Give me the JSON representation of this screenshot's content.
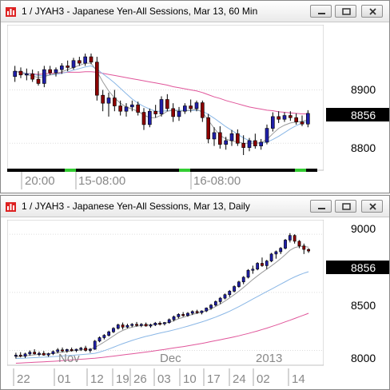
{
  "colors": {
    "pink": "#e0559a",
    "blue": "#8ab7e6",
    "grey": "#9a9a9a",
    "up": "#1f1fa8",
    "down": "#8b0000",
    "last": "#000000"
  },
  "window1": {
    "title": "1 / JYAH3 - Japanese Yen-All Sessions, Mar 13, 60 Min",
    "price_labels": [
      "8900",
      "8800"
    ],
    "last_price": "8856",
    "time_labels": [
      "20:00",
      "15-08:00",
      "16-08:00"
    ]
  },
  "window2": {
    "title": "1 / JYAH3 - Japanese Yen-All Sessions, Mar 13, Daily",
    "price_labels": [
      "9000",
      "8500",
      "8000"
    ],
    "last_price": "8856",
    "month_labels": [
      "Nov",
      "Dec",
      "2013"
    ],
    "date_labels": [
      "22",
      "01",
      "12",
      "19",
      "26",
      "03",
      "10",
      "17",
      "24",
      "02",
      "14"
    ]
  },
  "chart_data": [
    {
      "type": "candlestick",
      "title": "1 / JYAH3 - Japanese Yen-All Sessions, Mar 13, 60 Min",
      "ylim": [
        8760,
        9010
      ],
      "y_ticks": [
        8800,
        8900
      ],
      "last": 8856,
      "candles": [
        [
          8925,
          8945,
          8915,
          8935
        ],
        [
          8935,
          8942,
          8922,
          8928
        ],
        [
          8928,
          8940,
          8918,
          8930
        ],
        [
          8930,
          8938,
          8915,
          8920
        ],
        [
          8920,
          8935,
          8908,
          8912
        ],
        [
          8912,
          8945,
          8905,
          8938
        ],
        [
          8938,
          8945,
          8928,
          8932
        ],
        [
          8932,
          8942,
          8925,
          8938
        ],
        [
          8938,
          8950,
          8930,
          8945
        ],
        [
          8945,
          8955,
          8935,
          8942
        ],
        [
          8942,
          8960,
          8938,
          8955
        ],
        [
          8955,
          8962,
          8945,
          8950
        ],
        [
          8950,
          8968,
          8945,
          8962
        ],
        [
          8962,
          8968,
          8948,
          8952
        ],
        [
          8952,
          8962,
          8880,
          8890
        ],
        [
          8890,
          8900,
          8860,
          8875
        ],
        [
          8875,
          8895,
          8850,
          8885
        ],
        [
          8885,
          8900,
          8860,
          8870
        ],
        [
          8870,
          8880,
          8852,
          8860
        ],
        [
          8860,
          8875,
          8850,
          8868
        ],
        [
          8868,
          8880,
          8860,
          8872
        ],
        [
          8872,
          8878,
          8852,
          8858
        ],
        [
          8858,
          8866,
          8825,
          8835
        ],
        [
          8835,
          8865,
          8830,
          8860
        ],
        [
          8860,
          8872,
          8848,
          8855
        ],
        [
          8855,
          8888,
          8850,
          8882
        ],
        [
          8882,
          8892,
          8860,
          8865
        ],
        [
          8865,
          8875,
          8840,
          8850
        ],
        [
          8850,
          8868,
          8842,
          8860
        ],
        [
          8860,
          8875,
          8855,
          8870
        ],
        [
          8870,
          8882,
          8858,
          8865
        ],
        [
          8865,
          8880,
          8860,
          8876
        ],
        [
          8876,
          8880,
          8840,
          8848
        ],
        [
          8848,
          8855,
          8800,
          8808
        ],
        [
          8808,
          8830,
          8795,
          8820
        ],
        [
          8820,
          8832,
          8790,
          8798
        ],
        [
          8798,
          8812,
          8788,
          8805
        ],
        [
          8805,
          8825,
          8795,
          8818
        ],
        [
          8818,
          8826,
          8795,
          8800
        ],
        [
          8800,
          8815,
          8778,
          8792
        ],
        [
          8792,
          8810,
          8785,
          8805
        ],
        [
          8805,
          8818,
          8790,
          8795
        ],
        [
          8795,
          8808,
          8788,
          8802
        ],
        [
          8802,
          8835,
          8798,
          8828
        ],
        [
          8828,
          8858,
          8822,
          8850
        ],
        [
          8850,
          8860,
          8838,
          8845
        ],
        [
          8845,
          8858,
          8840,
          8852
        ],
        [
          8852,
          8860,
          8842,
          8848
        ],
        [
          8848,
          8856,
          8835,
          8840
        ],
        [
          8840,
          8852,
          8832,
          8836
        ],
        [
          8836,
          8862,
          8830,
          8856
        ]
      ],
      "ma_long": [
        8935,
        8933,
        8931,
        8930,
        8929,
        8930,
        8931,
        8931,
        8932,
        8933,
        8933,
        8933,
        8934,
        8934,
        8933,
        8931,
        8929,
        8927,
        8925,
        8923,
        8921,
        8919,
        8917,
        8915,
        8913,
        8911,
        8909,
        8906,
        8904,
        8902,
        8900,
        8898,
        8895,
        8891,
        8887,
        8884,
        8880,
        8877,
        8874,
        8871,
        8868,
        8866,
        8864,
        8862,
        8861,
        8859,
        8858,
        8857,
        8856,
        8855,
        8855
      ],
      "ma_mid": [
        8935,
        8933,
        8931,
        8929,
        8927,
        8927,
        8928,
        8929,
        8931,
        8934,
        8937,
        8940,
        8943,
        8945,
        8939,
        8930,
        8922,
        8913,
        8903,
        8893,
        8883,
        8875,
        8869,
        8864,
        8860,
        8860,
        8861,
        8862,
        8862,
        8861,
        8861,
        8862,
        8860,
        8854,
        8847,
        8839,
        8831,
        8824,
        8817,
        8810,
        8805,
        8801,
        8800,
        8802,
        8807,
        8813,
        8820,
        8827,
        8833,
        8838,
        8841
      ],
      "ma_short": [
        8935,
        8932,
        8929,
        8926,
        8923,
        8925,
        8928,
        8931,
        8934,
        8938,
        8942,
        8946,
        8950,
        8950,
        8935,
        8915,
        8898,
        8885,
        8875,
        8868,
        8864,
        8860,
        8853,
        8848,
        8848,
        8853,
        8860,
        8862,
        8860,
        8861,
        8862,
        8864,
        8858,
        8843,
        8828,
        8815,
        8808,
        8804,
        8803,
        8800,
        8800,
        8800,
        8801,
        8807,
        8818,
        8828,
        8834,
        8838,
        8840,
        8841,
        8844
      ]
    },
    {
      "type": "candlestick",
      "title": "1 / JYAH3 - Japanese Yen-All Sessions, Mar 13, Daily",
      "ylim": [
        7900,
        9070
      ],
      "y_ticks": [
        8000,
        8500,
        9000
      ],
      "last": 8856,
      "candles": [
        [
          7950,
          7980,
          7930,
          7960
        ],
        [
          7960,
          7985,
          7940,
          7950
        ],
        [
          7950,
          7980,
          7935,
          7970
        ],
        [
          7970,
          8000,
          7955,
          7985
        ],
        [
          7985,
          8010,
          7965,
          7970
        ],
        [
          7970,
          7990,
          7950,
          7975
        ],
        [
          7975,
          7995,
          7955,
          7960
        ],
        [
          7960,
          7980,
          7945,
          7972
        ],
        [
          7972,
          8000,
          7960,
          7990
        ],
        [
          7990,
          8020,
          7975,
          8005
        ],
        [
          8005,
          8025,
          7985,
          7995
        ],
        [
          7995,
          8015,
          7980,
          8008
        ],
        [
          8008,
          8025,
          7990,
          8000
        ],
        [
          8000,
          8015,
          7985,
          8010
        ],
        [
          8010,
          8030,
          7995,
          8020
        ],
        [
          8020,
          8040,
          7990,
          8000
        ],
        [
          8000,
          8020,
          7980,
          8010
        ],
        [
          8010,
          8090,
          8005,
          8080
        ],
        [
          8080,
          8120,
          8070,
          8110
        ],
        [
          8110,
          8140,
          8095,
          8130
        ],
        [
          8130,
          8170,
          8120,
          8160
        ],
        [
          8160,
          8200,
          8150,
          8190
        ],
        [
          8190,
          8230,
          8180,
          8220
        ],
        [
          8220,
          8240,
          8180,
          8200
        ],
        [
          8200,
          8230,
          8190,
          8215
        ],
        [
          8215,
          8235,
          8200,
          8225
        ],
        [
          8225,
          8245,
          8205,
          8215
        ],
        [
          8215,
          8235,
          8200,
          8225
        ],
        [
          8225,
          8240,
          8205,
          8210
        ],
        [
          8210,
          8230,
          8195,
          8220
        ],
        [
          8220,
          8245,
          8210,
          8235
        ],
        [
          8235,
          8250,
          8215,
          8230
        ],
        [
          8230,
          8245,
          8215,
          8240
        ],
        [
          8240,
          8275,
          8230,
          8265
        ],
        [
          8265,
          8300,
          8250,
          8290
        ],
        [
          8290,
          8320,
          8275,
          8310
        ],
        [
          8310,
          8330,
          8290,
          8300
        ],
        [
          8300,
          8330,
          8290,
          8320
        ],
        [
          8320,
          8345,
          8305,
          8335
        ],
        [
          8335,
          8350,
          8315,
          8325
        ],
        [
          8325,
          8345,
          8310,
          8340
        ],
        [
          8340,
          8370,
          8330,
          8365
        ],
        [
          8365,
          8400,
          8350,
          8390
        ],
        [
          8390,
          8430,
          8380,
          8420
        ],
        [
          8420,
          8460,
          8400,
          8450
        ],
        [
          8450,
          8490,
          8440,
          8480
        ],
        [
          8480,
          8520,
          8460,
          8510
        ],
        [
          8510,
          8560,
          8500,
          8550
        ],
        [
          8550,
          8600,
          8540,
          8590
        ],
        [
          8590,
          8640,
          8570,
          8630
        ],
        [
          8630,
          8700,
          8620,
          8690
        ],
        [
          8690,
          8730,
          8660,
          8700
        ],
        [
          8700,
          8760,
          8690,
          8750
        ],
        [
          8750,
          8800,
          8720,
          8730
        ],
        [
          8730,
          8780,
          8700,
          8770
        ],
        [
          8770,
          8840,
          8760,
          8830
        ],
        [
          8830,
          8860,
          8790,
          8850
        ],
        [
          8850,
          8890,
          8830,
          8880
        ],
        [
          8880,
          8960,
          8870,
          8950
        ],
        [
          8950,
          9010,
          8930,
          8990
        ],
        [
          8990,
          9000,
          8920,
          8940
        ],
        [
          8940,
          8950,
          8880,
          8900
        ],
        [
          8900,
          8920,
          8830,
          8870
        ],
        [
          8870,
          8880,
          8840,
          8856
        ]
      ],
      "ma_long": [
        7890,
        7892,
        7894,
        7896,
        7898,
        7900,
        7902,
        7904,
        7906,
        7909,
        7912,
        7915,
        7918,
        7921,
        7924,
        7927,
        7930,
        7933,
        7937,
        7941,
        7946,
        7951,
        7956,
        7961,
        7966,
        7971,
        7976,
        7981,
        7986,
        7991,
        7997,
        8003,
        8009,
        8015,
        8021,
        8027,
        8033,
        8039,
        8046,
        8053,
        8060,
        8068,
        8076,
        8084,
        8092,
        8100,
        8108,
        8117,
        8126,
        8136,
        8146,
        8157,
        8168,
        8180,
        8192,
        8205,
        8218,
        8232,
        8246,
        8260,
        8275,
        8290,
        8305,
        8320
      ],
      "ma_mid": [
        7930,
        7932,
        7934,
        7936,
        7938,
        7940,
        7942,
        7944,
        7946,
        7949,
        7952,
        7955,
        7958,
        7961,
        7964,
        7967,
        7970,
        7975,
        7985,
        7998,
        8012,
        8027,
        8043,
        8058,
        8072,
        8086,
        8098,
        8110,
        8121,
        8130,
        8140,
        8149,
        8158,
        8167,
        8177,
        8187,
        8198,
        8209,
        8221,
        8233,
        8245,
        8258,
        8272,
        8287,
        8303,
        8320,
        8338,
        8357,
        8377,
        8398,
        8420,
        8442,
        8464,
        8486,
        8507,
        8528,
        8549,
        8570,
        8592,
        8614,
        8633,
        8650,
        8665,
        8678
      ],
      "ma_short": [
        7945,
        7950,
        7954,
        7958,
        7962,
        7966,
        7968,
        7970,
        7974,
        7979,
        7984,
        7990,
        7996,
        8000,
        8004,
        8008,
        8010,
        8025,
        8048,
        8072,
        8098,
        8125,
        8152,
        8172,
        8188,
        8200,
        8208,
        8214,
        8218,
        8220,
        8224,
        8228,
        8233,
        8242,
        8256,
        8272,
        8285,
        8298,
        8310,
        8320,
        8330,
        8342,
        8358,
        8378,
        8400,
        8425,
        8452,
        8480,
        8510,
        8542,
        8576,
        8610,
        8642,
        8672,
        8700,
        8728,
        8758,
        8790,
        8825,
        8862,
        8885,
        8895,
        8895,
        8890
      ]
    }
  ]
}
